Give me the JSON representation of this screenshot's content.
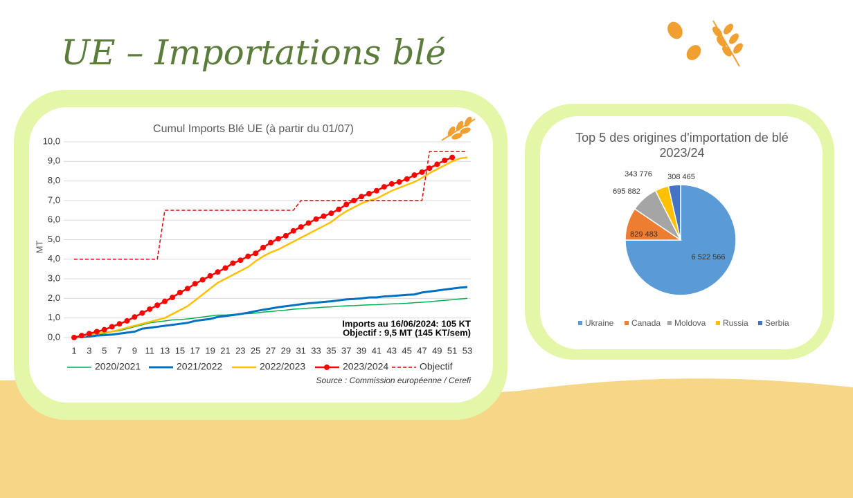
{
  "header": {
    "title": "UE – Importations blé"
  },
  "chart_data": [
    {
      "type": "line",
      "title": "Cumul Imports Blé UE (à partir du 01/07)",
      "ylabel": "MT",
      "x": [
        1,
        2,
        3,
        4,
        5,
        6,
        7,
        8,
        9,
        10,
        11,
        12,
        13,
        14,
        15,
        16,
        17,
        18,
        19,
        20,
        21,
        22,
        23,
        24,
        25,
        26,
        27,
        28,
        29,
        30,
        31,
        32,
        33,
        34,
        35,
        36,
        37,
        38,
        39,
        40,
        41,
        42,
        43,
        44,
        45,
        46,
        47,
        48,
        49,
        50,
        51,
        52,
        53
      ],
      "xlim": [
        1,
        53
      ],
      "xticks": [
        1,
        3,
        5,
        7,
        9,
        11,
        13,
        15,
        17,
        19,
        21,
        23,
        25,
        27,
        29,
        31,
        33,
        35,
        37,
        39,
        41,
        43,
        45,
        47,
        49,
        51,
        53
      ],
      "ylim": [
        0,
        10
      ],
      "yticks": [
        {
          "value": 0,
          "label": "0,0"
        },
        {
          "value": 1,
          "label": "1,0"
        },
        {
          "value": 2,
          "label": "2,0"
        },
        {
          "value": 3,
          "label": "3,0"
        },
        {
          "value": 4,
          "label": "4,0"
        },
        {
          "value": 5,
          "label": "5,0"
        },
        {
          "value": 6,
          "label": "6,0"
        },
        {
          "value": 7,
          "label": "7,0"
        },
        {
          "value": 8,
          "label": "8,0"
        },
        {
          "value": 9,
          "label": "9,0"
        },
        {
          "value": 10,
          "label": "10,0"
        }
      ],
      "grid": true,
      "legend": "bottom",
      "series": [
        {
          "name": "2020/2021",
          "color": "#00b050",
          "width": 1.5,
          "values": [
            0,
            0.05,
            0.1,
            0.15,
            0.2,
            0.3,
            0.35,
            0.45,
            0.55,
            0.65,
            0.75,
            0.8,
            0.85,
            0.9,
            0.92,
            0.95,
            1.0,
            1.05,
            1.1,
            1.15,
            1.15,
            1.18,
            1.2,
            1.22,
            1.25,
            1.3,
            1.33,
            1.37,
            1.4,
            1.45,
            1.47,
            1.5,
            1.52,
            1.55,
            1.57,
            1.6,
            1.62,
            1.63,
            1.65,
            1.67,
            1.68,
            1.7,
            1.72,
            1.73,
            1.75,
            1.78,
            1.8,
            1.83,
            1.87,
            1.9,
            1.93,
            1.97,
            2.0
          ]
        },
        {
          "name": "2021/2022",
          "color": "#0070c0",
          "width": 3,
          "values": [
            0,
            0.02,
            0.05,
            0.1,
            0.12,
            0.15,
            0.2,
            0.25,
            0.3,
            0.45,
            0.5,
            0.55,
            0.6,
            0.65,
            0.7,
            0.75,
            0.85,
            0.9,
            0.95,
            1.05,
            1.1,
            1.15,
            1.2,
            1.27,
            1.35,
            1.42,
            1.48,
            1.55,
            1.6,
            1.65,
            1.7,
            1.75,
            1.78,
            1.82,
            1.85,
            1.9,
            1.95,
            1.97,
            2.0,
            2.05,
            2.05,
            2.1,
            2.12,
            2.15,
            2.18,
            2.2,
            2.3,
            2.35,
            2.4,
            2.45,
            2.5,
            2.55,
            2.58
          ]
        },
        {
          "name": "2022/2023",
          "color": "#ffc000",
          "width": 2.5,
          "values": [
            0,
            0.05,
            0.15,
            0.2,
            0.25,
            0.3,
            0.4,
            0.5,
            0.6,
            0.7,
            0.8,
            0.9,
            1.0,
            1.2,
            1.4,
            1.6,
            1.9,
            2.2,
            2.5,
            2.8,
            3.0,
            3.2,
            3.4,
            3.6,
            3.9,
            4.15,
            4.35,
            4.5,
            4.7,
            4.9,
            5.1,
            5.3,
            5.5,
            5.7,
            5.9,
            6.2,
            6.45,
            6.65,
            6.85,
            7.0,
            7.1,
            7.3,
            7.5,
            7.65,
            7.8,
            7.95,
            8.15,
            8.4,
            8.6,
            8.8,
            9.0,
            9.15,
            9.2
          ]
        },
        {
          "name": "2023/2024",
          "color": "#ff0000",
          "width": 2.5,
          "markers": true,
          "values": [
            0,
            0.1,
            0.2,
            0.3,
            0.4,
            0.55,
            0.7,
            0.85,
            1.05,
            1.25,
            1.45,
            1.65,
            1.85,
            2.05,
            2.3,
            2.5,
            2.75,
            2.95,
            3.15,
            3.35,
            3.55,
            3.8,
            3.95,
            4.15,
            4.3,
            4.6,
            4.85,
            5.05,
            5.2,
            5.45,
            5.65,
            5.85,
            6.05,
            6.2,
            6.35,
            6.55,
            6.8,
            7.0,
            7.2,
            7.35,
            7.5,
            7.7,
            7.85,
            7.95,
            8.1,
            8.3,
            8.45,
            8.65,
            8.85,
            9.05,
            9.2,
            null,
            null
          ]
        },
        {
          "name": "Objectif",
          "color": "#e00000",
          "width": 1.5,
          "dashed": true,
          "values": [
            4.0,
            4.0,
            4.0,
            4.0,
            4.0,
            4.0,
            4.0,
            4.0,
            4.0,
            4.0,
            4.0,
            4.0,
            6.5,
            6.5,
            6.5,
            6.5,
            6.5,
            6.5,
            6.5,
            6.5,
            6.5,
            6.5,
            6.5,
            6.5,
            6.5,
            6.5,
            6.5,
            6.5,
            6.5,
            6.5,
            7.0,
            7.0,
            7.0,
            7.0,
            7.0,
            7.0,
            7.0,
            7.0,
            7.0,
            7.0,
            7.0,
            7.0,
            7.0,
            7.0,
            7.0,
            7.0,
            7.0,
            9.5,
            9.5,
            9.5,
            9.5,
            9.5,
            9.5
          ]
        }
      ],
      "annotations": [
        "Imports au 16/06/2024: 105 KT",
        "Objectif  : 9,5 MT  (145 KT/sem)"
      ],
      "source": "Source : Commission européenne / Cerefi"
    },
    {
      "type": "pie",
      "title": "Top 5 des origines d'importation de blé 2023/24",
      "legend": "bottom",
      "categories": [
        "Ukraine",
        "Canada",
        "Moldova",
        "Russia",
        "Serbia"
      ],
      "values": [
        6522566,
        829483,
        695882,
        343776,
        308465
      ],
      "value_labels": [
        "6 522 566",
        "829 483",
        "695 882",
        "343 776",
        "308 465"
      ],
      "colors": [
        "#5b9bd5",
        "#ed7d31",
        "#a5a5a5",
        "#ffc000",
        "#4472c4"
      ]
    }
  ]
}
